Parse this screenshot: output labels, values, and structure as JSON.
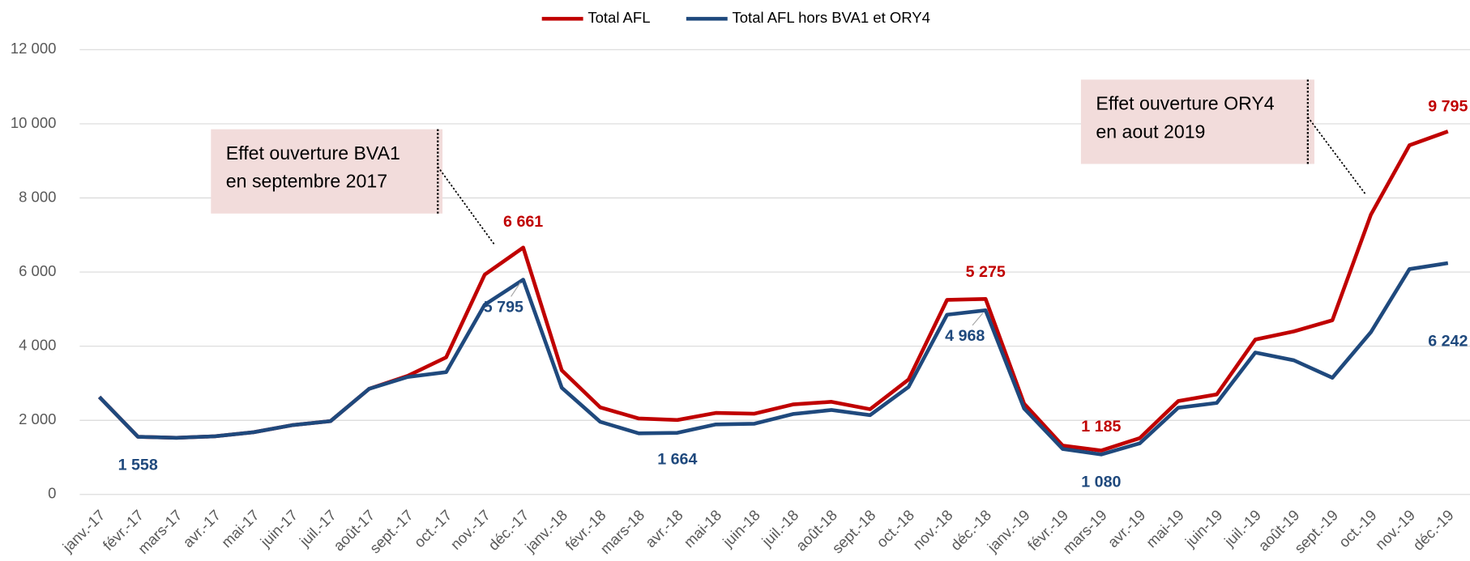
{
  "chart_data": {
    "type": "line",
    "categories": [
      "janv.-17",
      "févr.-17",
      "mars-17",
      "avr.-17",
      "mai-17",
      "juin-17",
      "juil.-17",
      "août-17",
      "sept.-17",
      "oct.-17",
      "nov.-17",
      "déc.-17",
      "janv.-18",
      "févr.-18",
      "mars-18",
      "avr.-18",
      "mai-18",
      "juin-18",
      "juil.-18",
      "août-18",
      "sept.-18",
      "oct.-18",
      "nov.-18",
      "déc.-18",
      "janv.-19",
      "févr.-19",
      "mars-19",
      "avr.-19",
      "mai-19",
      "juin-19",
      "juil.-19",
      "août-19",
      "sept.-19",
      "oct.-19",
      "nov.-19",
      "déc.-19"
    ],
    "series": [
      {
        "name": "Total AFL",
        "color": "#c00000",
        "values": [
          2630,
          1558,
          1530,
          1570,
          1680,
          1870,
          1980,
          2850,
          3200,
          3700,
          5930,
          6661,
          3350,
          2350,
          2050,
          2010,
          2200,
          2180,
          2430,
          2500,
          2300,
          3100,
          5250,
          5275,
          2450,
          1320,
          1185,
          1520,
          2520,
          2700,
          4180,
          4400,
          4700,
          7550,
          9420,
          9795
        ],
        "value_labels": [
          null,
          null,
          null,
          null,
          null,
          null,
          null,
          null,
          null,
          null,
          null,
          "6 661",
          null,
          null,
          null,
          null,
          null,
          null,
          null,
          null,
          null,
          null,
          null,
          "5 275",
          null,
          null,
          "1 185",
          null,
          null,
          null,
          null,
          null,
          null,
          null,
          null,
          "9 795"
        ]
      },
      {
        "name": "Total AFL hors BVA1 et ORY4",
        "color": "#1f497d",
        "values": [
          2630,
          1558,
          1530,
          1570,
          1680,
          1870,
          1980,
          2850,
          3170,
          3300,
          5120,
          5795,
          2880,
          1960,
          1650,
          1664,
          1890,
          1910,
          2170,
          2280,
          2140,
          2900,
          4850,
          4968,
          2320,
          1230,
          1080,
          1380,
          2340,
          2470,
          3830,
          3620,
          3150,
          4380,
          6080,
          6242
        ],
        "value_labels": [
          null,
          "1 558",
          null,
          null,
          null,
          null,
          null,
          null,
          null,
          null,
          null,
          "5 795",
          null,
          null,
          null,
          "1 664",
          null,
          null,
          null,
          null,
          null,
          null,
          null,
          "4 968",
          null,
          null,
          "1 080",
          null,
          null,
          null,
          null,
          null,
          null,
          null,
          null,
          "6 242"
        ]
      }
    ],
    "ylim": [
      0,
      12000
    ],
    "yticks": [
      0,
      {
        "value": 2000,
        "label": "2 000"
      },
      {
        "value": 4000,
        "label": "4 000"
      },
      {
        "value": 6000,
        "label": "6 000"
      },
      {
        "value": 8000,
        "label": "8 000"
      },
      {
        "value": 10000,
        "label": "10 000"
      },
      {
        "value": 12000,
        "label": "12 000"
      }
    ],
    "grid": true,
    "legend": "top",
    "annotations": [
      {
        "lines": [
          "Effet ouverture BVA1",
          "en septembre 2017"
        ]
      },
      {
        "lines": [
          "Effet ouverture ORY4",
          "en aout 2019"
        ]
      }
    ]
  }
}
